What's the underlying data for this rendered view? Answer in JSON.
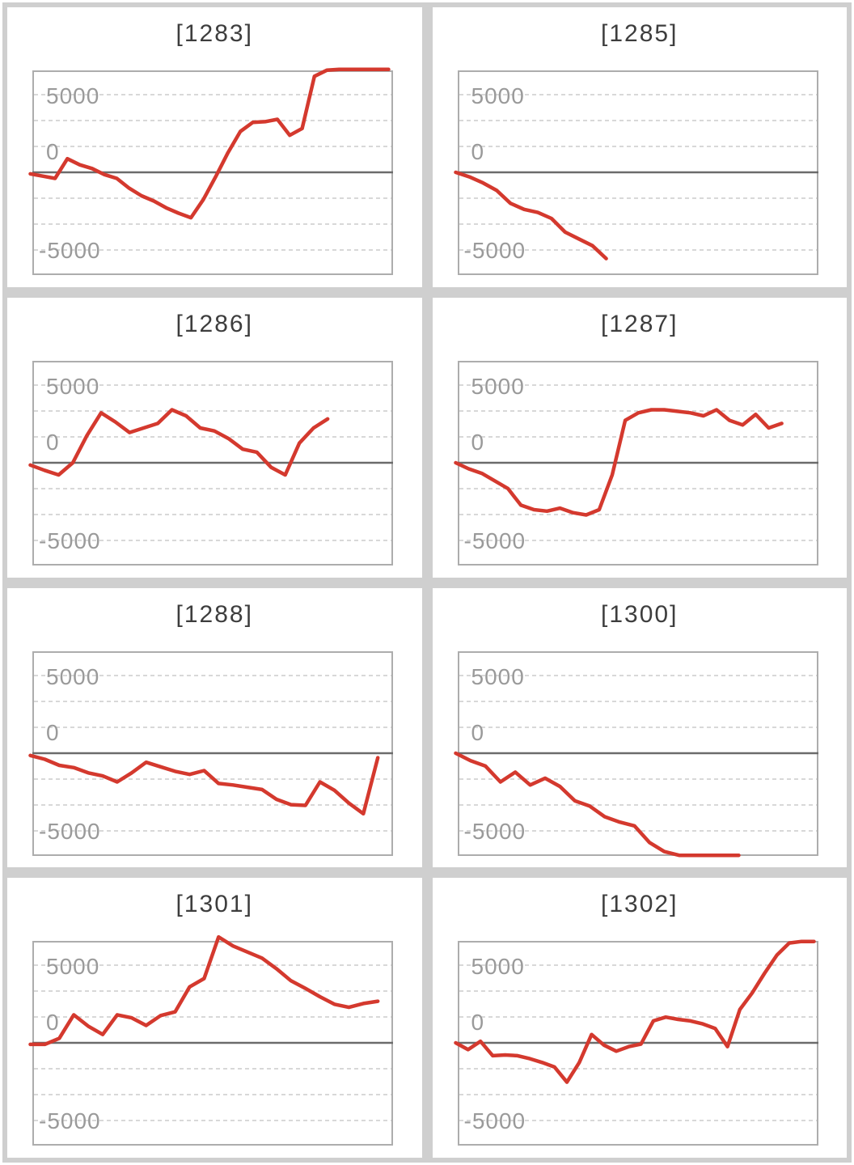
{
  "style": {
    "line_color": "#d4392e",
    "grid_dash_color": "#cccccc",
    "zero_line_color": "#6b6b6b",
    "chart_border_color": "#adadad",
    "title_color": "#3d3d3d",
    "axis_label_color": "#9a9a9a",
    "page_frame_color": "#cfcfcf",
    "panel_bg_color": "#ffffff"
  },
  "axis": {
    "tick_labels": [
      "5000",
      "0",
      "-5000"
    ],
    "tick_values": [
      5000,
      0,
      -5000
    ],
    "ylim": [
      -6750,
      6750
    ],
    "zero_line": 0,
    "grid": "dashed-horizontal",
    "gridline_count": 7,
    "x_axis_labels": "none"
  },
  "chart_data": [
    {
      "type": "line",
      "title": "[1283]",
      "machine_id": "1283",
      "end_frac": 1.0,
      "values": [
        -100,
        -250,
        -400,
        900,
        500,
        250,
        -150,
        -400,
        -1050,
        -1550,
        -1900,
        -2350,
        -2700,
        -3000,
        -1800,
        -300,
        1300,
        2700,
        3300,
        3350,
        3500,
        2450,
        2900,
        6350,
        6750,
        6800,
        6800,
        6800,
        6800,
        6800
      ]
    },
    {
      "type": "line",
      "title": "[1285]",
      "machine_id": "1285",
      "end_frac": 0.42,
      "values": [
        0,
        -300,
        -700,
        -1200,
        -2050,
        -2450,
        -2650,
        -3050,
        -3950,
        -4400,
        -4850,
        -5700
      ]
    },
    {
      "type": "line",
      "title": "[1286]",
      "machine_id": "1286",
      "end_frac": 0.83,
      "values": [
        -150,
        -500,
        -800,
        0,
        1800,
        3300,
        2700,
        2000,
        2300,
        2600,
        3500,
        3100,
        2300,
        2100,
        1600,
        900,
        700,
        -300,
        -800,
        1300,
        2300,
        2900
      ]
    },
    {
      "type": "line",
      "title": "[1287]",
      "machine_id": "1287",
      "end_frac": 0.91,
      "values": [
        0,
        -400,
        -700,
        -1200,
        -1700,
        -2800,
        -3100,
        -3200,
        -3000,
        -3300,
        -3450,
        -3100,
        -800,
        2800,
        3300,
        3500,
        3500,
        3400,
        3300,
        3100,
        3500,
        2800,
        2500,
        3200,
        2300,
        2600
      ]
    },
    {
      "type": "line",
      "title": "[1288]",
      "machine_id": "1288",
      "end_frac": 0.97,
      "values": [
        -150,
        -400,
        -800,
        -950,
        -1300,
        -1500,
        -1900,
        -1300,
        -600,
        -900,
        -1200,
        -1400,
        -1150,
        -2000,
        -2100,
        -2250,
        -2400,
        -3050,
        -3400,
        -3450,
        -1900,
        -2450,
        -3300,
        -4000,
        -300
      ]
    },
    {
      "type": "line",
      "title": "[1300]",
      "machine_id": "1300",
      "end_frac": 0.79,
      "values": [
        0,
        -500,
        -850,
        -1900,
        -1250,
        -2100,
        -1650,
        -2200,
        -3150,
        -3500,
        -4200,
        -4550,
        -4800,
        -5900,
        -6500,
        -6750,
        -6750,
        -6750,
        -6750,
        -6750
      ]
    },
    {
      "type": "line",
      "title": "[1301]",
      "machine_id": "1301",
      "end_frac": 0.97,
      "values": [
        -100,
        -100,
        300,
        1850,
        1100,
        550,
        1850,
        1650,
        1150,
        1800,
        2050,
        3700,
        4250,
        7000,
        6400,
        6000,
        5600,
        4900,
        4100,
        3600,
        3050,
        2550,
        2350,
        2600,
        2750
      ]
    },
    {
      "type": "line",
      "title": "[1302]",
      "machine_id": "1302",
      "end_frac": 1.0,
      "values": [
        0,
        -450,
        100,
        -850,
        -800,
        -850,
        -1050,
        -1300,
        -1600,
        -2600,
        -1300,
        550,
        -150,
        -550,
        -250,
        -80,
        1450,
        1700,
        1550,
        1450,
        1250,
        950,
        -250,
        2200,
        3300,
        4600,
        5800,
        6600,
        6700,
        6700
      ]
    }
  ]
}
